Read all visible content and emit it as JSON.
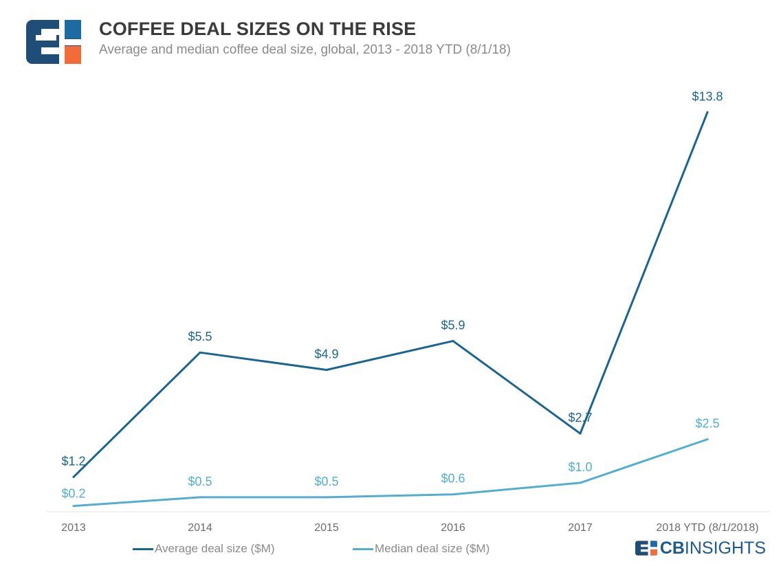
{
  "header": {
    "title": "COFFEE DEAL SIZES ON THE RISE",
    "subtitle": "Average and median coffee deal size, global, 2013 - 2018 YTD (8/1/18)"
  },
  "brand": {
    "prefix": "CB",
    "suffix": "INSIGHTS"
  },
  "colors": {
    "average": "#1a6590",
    "median": "#52aed0",
    "axis": "#e3e3e3",
    "tick": "#6b6b6b",
    "logo_navy": "#1e4d77",
    "logo_blue": "#1c6ba3",
    "logo_orange": "#f26b38"
  },
  "chart_data": {
    "type": "line",
    "categories": [
      "2013",
      "2014",
      "2015",
      "2016",
      "2017",
      "2018 YTD (8/1/2018)"
    ],
    "series": [
      {
        "name": "Average deal size ($M)",
        "values": [
          1.2,
          5.5,
          4.9,
          5.9,
          2.7,
          13.8
        ],
        "labels": [
          "$1.2",
          "$5.5",
          "$4.9",
          "$5.9",
          "$2.7",
          "$13.8"
        ]
      },
      {
        "name": "Median deal size ($M)",
        "values": [
          0.2,
          0.5,
          0.5,
          0.6,
          1.0,
          2.5
        ],
        "labels": [
          "$0.2",
          "$0.5",
          "$0.5",
          "$0.6",
          "$1.0",
          "$2.5"
        ]
      }
    ],
    "ylim": [
      0,
      14
    ],
    "grid": false,
    "legend": "bottom"
  }
}
